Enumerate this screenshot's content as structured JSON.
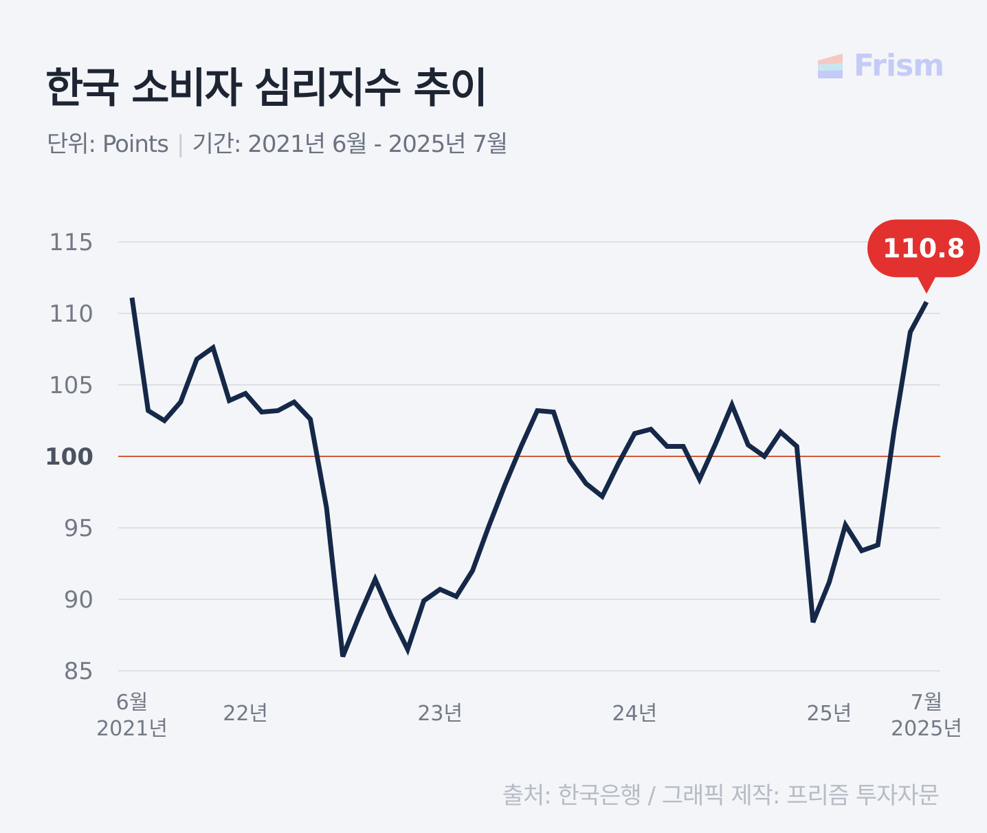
{
  "title": "한국 소비자 심리지수 추이",
  "subtitle": {
    "unit": "단위: Points",
    "separator": "|",
    "period": "기간: 2021년 6월 - 2025년 7월"
  },
  "brand": {
    "name": "Frism",
    "icon": "frism-logo-icon"
  },
  "source": "출처: 한국은행 / 그래픽 제작: 프리즘 투자자문",
  "colors": {
    "line": "#152848",
    "reference": "#d2593a",
    "grid": "#d4d8de",
    "callout": "#e2312f",
    "axis_text": "#737a86"
  },
  "chart_data": {
    "type": "line",
    "title": "한국 소비자 심리지수 추이",
    "xlabel": "",
    "ylabel": "",
    "ylim": [
      85,
      115
    ],
    "yticks": [
      115,
      110,
      105,
      100,
      95,
      90,
      85
    ],
    "grid": true,
    "reference_line": 100,
    "x": [
      "2021-06",
      "2021-07",
      "2021-08",
      "2021-09",
      "2021-10",
      "2021-11",
      "2021-12",
      "2022-01",
      "2022-02",
      "2022-03",
      "2022-04",
      "2022-05",
      "2022-06",
      "2022-07",
      "2022-08",
      "2022-09",
      "2022-10",
      "2022-11",
      "2022-12",
      "2023-01",
      "2023-02",
      "2023-03",
      "2023-04",
      "2023-05",
      "2023-06",
      "2023-07",
      "2023-08",
      "2023-09",
      "2023-10",
      "2023-11",
      "2023-12",
      "2024-01",
      "2024-02",
      "2024-03",
      "2024-04",
      "2024-05",
      "2024-06",
      "2024-07",
      "2024-08",
      "2024-09",
      "2024-10",
      "2024-11",
      "2024-12",
      "2025-01",
      "2025-02",
      "2025-03",
      "2025-04",
      "2025-05",
      "2025-06",
      "2025-07"
    ],
    "series": [
      {
        "values": [
          111.1,
          103.2,
          102.5,
          103.8,
          106.8,
          107.6,
          103.9,
          104.4,
          103.1,
          103.2,
          103.8,
          102.6,
          96.4,
          86.0,
          88.8,
          91.4,
          88.8,
          86.5,
          89.9,
          90.7,
          90.2,
          92.0,
          95.1,
          98.0,
          100.7,
          103.2,
          103.1,
          99.7,
          98.1,
          97.2,
          99.5,
          101.6,
          101.9,
          100.7,
          100.7,
          98.4,
          100.9,
          103.6,
          100.8,
          100.0,
          101.7,
          100.7,
          88.4,
          91.2,
          95.2,
          93.4,
          93.8,
          101.8,
          108.7,
          110.8
        ]
      }
    ],
    "x_tick_labels": [
      {
        "x": "2021-06",
        "line1": "6월",
        "line2": "2021년"
      },
      {
        "x": "2022-01",
        "line1": "22년",
        "line2": ""
      },
      {
        "x": "2023-01",
        "line1": "23년",
        "line2": ""
      },
      {
        "x": "2024-01",
        "line1": "24년",
        "line2": ""
      },
      {
        "x": "2025-01",
        "line1": "25년",
        "line2": ""
      },
      {
        "x": "2025-07",
        "line1": "7월",
        "line2": "2025년"
      }
    ],
    "annotation": {
      "x": "2025-07",
      "label": "110.8"
    }
  }
}
